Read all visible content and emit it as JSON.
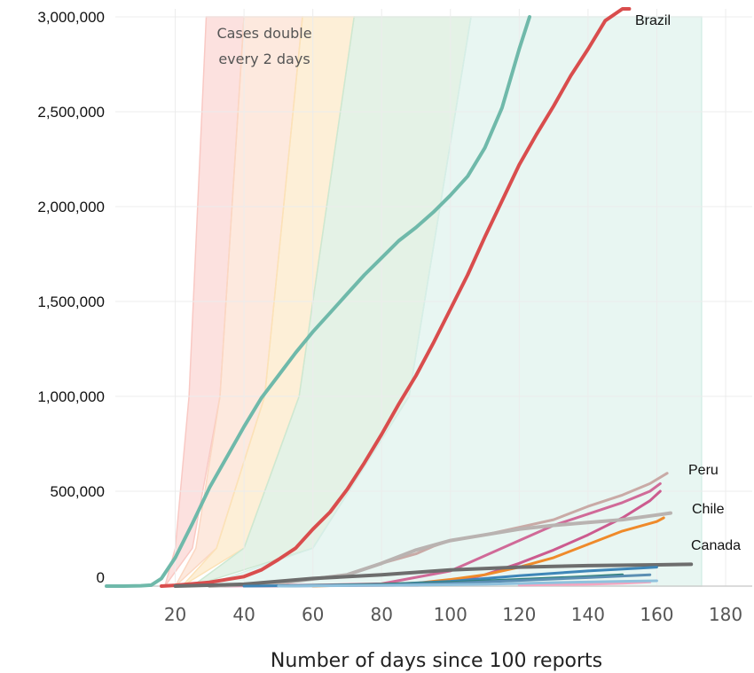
{
  "chart_data": {
    "type": "line",
    "title": "",
    "xlabel": "Number of days since 100 reports",
    "ylabel": "",
    "xlim": [
      0,
      185
    ],
    "ylim": [
      0,
      3000000
    ],
    "x_ticks": [
      20,
      40,
      60,
      80,
      100,
      120,
      140,
      160,
      180
    ],
    "y_ticks": [
      {
        "value": 0,
        "label": "0"
      },
      {
        "value": 500000,
        "label": "500,000"
      },
      {
        "value": 1000000,
        "label": "1,000,000"
      },
      {
        "value": 1500000,
        "label": "1,500,000"
      },
      {
        "value": 2000000,
        "label": "2,000,000"
      },
      {
        "value": 2500000,
        "label": "2,500,000"
      },
      {
        "value": 3000000,
        "label": "3,000,000"
      }
    ],
    "grid": true,
    "annotation": "Cases double every 2 days",
    "doubling_bands": [
      {
        "color": "#f9c9c4",
        "lower": [
          [
            17,
            0
          ],
          [
            20,
            200000
          ],
          [
            24,
            1000000
          ],
          [
            29,
            3000000
          ]
        ],
        "upper": [
          [
            17,
            0
          ],
          [
            25,
            200000
          ],
          [
            33,
            1000000
          ],
          [
            40,
            3000000
          ]
        ]
      },
      {
        "color": "#fbd7c2",
        "lower": [
          [
            20,
            0
          ],
          [
            26,
            200000
          ],
          [
            33,
            1000000
          ],
          [
            40,
            3000000
          ]
        ],
        "upper": [
          [
            20,
            0
          ],
          [
            32,
            200000
          ],
          [
            46,
            1000000
          ],
          [
            57,
            3000000
          ]
        ]
      },
      {
        "color": "#fce2b7",
        "lower": [
          [
            22,
            0
          ],
          [
            32,
            200000
          ],
          [
            46,
            1000000
          ],
          [
            57,
            3000000
          ]
        ],
        "upper": [
          [
            22,
            0
          ],
          [
            40,
            200000
          ],
          [
            56,
            1000000
          ],
          [
            72,
            3000000
          ]
        ]
      },
      {
        "color": "#cde8d2",
        "lower": [
          [
            25,
            0
          ],
          [
            40,
            200000
          ],
          [
            56,
            1000000
          ],
          [
            72,
            3000000
          ]
        ],
        "upper": [
          [
            25,
            0
          ],
          [
            60,
            200000
          ],
          [
            88,
            1000000
          ],
          [
            106,
            3000000
          ]
        ]
      },
      {
        "color": "#d6eee7",
        "lower": [
          [
            28,
            0
          ],
          [
            60,
            200000
          ],
          [
            88,
            1000000
          ],
          [
            106,
            3000000
          ]
        ],
        "upper": [
          [
            28,
            0
          ],
          [
            173,
            0
          ],
          [
            173,
            3000000
          ]
        ]
      }
    ],
    "series": [
      {
        "name": "",
        "color": "#6fb9aa",
        "width": 4,
        "x": [
          0,
          5,
          10,
          13,
          16,
          20,
          25,
          30,
          35,
          40,
          45,
          50,
          55,
          60,
          65,
          70,
          75,
          80,
          85,
          90,
          95,
          100,
          105,
          110,
          115,
          120,
          123
        ],
        "y": [
          0,
          0,
          2000,
          5000,
          40000,
          150000,
          330000,
          520000,
          680000,
          840000,
          990000,
          1110000,
          1230000,
          1340000,
          1440000,
          1540000,
          1640000,
          1730000,
          1820000,
          1890000,
          1970000,
          2060000,
          2160000,
          2310000,
          2520000,
          2830000,
          3000000
        ]
      },
      {
        "name": "Brazil",
        "color": "#d94d4d",
        "width": 4,
        "x": [
          16,
          20,
          30,
          40,
          45,
          50,
          55,
          60,
          65,
          70,
          75,
          80,
          85,
          90,
          95,
          100,
          105,
          110,
          115,
          120,
          125,
          130,
          135,
          140,
          145,
          150,
          152
        ],
        "y": [
          0,
          4000,
          20000,
          50000,
          85000,
          140000,
          200000,
          300000,
          390000,
          510000,
          650000,
          800000,
          960000,
          1110000,
          1280000,
          1460000,
          1640000,
          1840000,
          2030000,
          2220000,
          2380000,
          2530000,
          2690000,
          2830000,
          2980000,
          3150000,
          3200000
        ]
      },
      {
        "name": "Peru",
        "color": "#c9aaa6",
        "width": 3,
        "x": [
          30,
          50,
          70,
          80,
          90,
          95,
          100,
          110,
          120,
          130,
          140,
          150,
          158,
          163
        ],
        "y": [
          0,
          20000,
          60000,
          120000,
          170000,
          210000,
          240000,
          270000,
          310000,
          350000,
          420000,
          480000,
          540000,
          595000
        ]
      },
      {
        "name": "",
        "color": "#d06a98",
        "width": 3,
        "x": [
          30,
          60,
          80,
          100,
          110,
          120,
          130,
          140,
          150,
          158,
          161
        ],
        "y": [
          0,
          5000,
          12000,
          80000,
          160000,
          240000,
          320000,
          380000,
          440000,
          500000,
          540000
        ]
      },
      {
        "name": "",
        "color": "#cc5b8f",
        "width": 3,
        "x": [
          40,
          90,
          100,
          110,
          120,
          130,
          140,
          150,
          158,
          161
        ],
        "y": [
          0,
          5000,
          20000,
          60000,
          120000,
          190000,
          270000,
          360000,
          450000,
          500000
        ]
      },
      {
        "name": "Chile",
        "color": "#b9b3b1",
        "width": 4,
        "x": [
          30,
          50,
          70,
          80,
          90,
          100,
          110,
          120,
          130,
          140,
          150,
          160,
          164
        ],
        "y": [
          0,
          15000,
          60000,
          120000,
          190000,
          240000,
          270000,
          300000,
          320000,
          335000,
          350000,
          375000,
          385000
        ]
      },
      {
        "name": "Canada",
        "color": "#ef8a2a",
        "width": 3,
        "x": [
          60,
          90,
          100,
          110,
          120,
          130,
          140,
          150,
          160,
          162
        ],
        "y": [
          0,
          15000,
          35000,
          60000,
          100000,
          150000,
          220000,
          290000,
          340000,
          360000
        ]
      },
      {
        "name": "",
        "color": "#6d6d6d",
        "width": 4,
        "x": [
          20,
          40,
          60,
          80,
          100,
          120,
          140,
          160,
          170
        ],
        "y": [
          0,
          10000,
          40000,
          60000,
          85000,
          100000,
          108000,
          112000,
          115000
        ]
      },
      {
        "name": "",
        "color": "#3e86b8",
        "width": 3,
        "x": [
          40,
          80,
          100,
          120,
          140,
          155,
          160
        ],
        "y": [
          0,
          8000,
          25000,
          55000,
          80000,
          95000,
          100000
        ]
      },
      {
        "name": "",
        "color": "#2e7f7a",
        "width": 3,
        "x": [
          50,
          80,
          100,
          120,
          140,
          150
        ],
        "y": [
          0,
          10000,
          20000,
          35000,
          50000,
          60000
        ]
      },
      {
        "name": "",
        "color": "#5c8fb3",
        "width": 3,
        "x": [
          50,
          80,
          100,
          120,
          140,
          158
        ],
        "y": [
          0,
          6000,
          15000,
          30000,
          45000,
          60000
        ]
      },
      {
        "name": "",
        "color": "#f4a6c0",
        "width": 3,
        "x": [
          120,
          130,
          140,
          150,
          158
        ],
        "y": [
          5000,
          8000,
          10000,
          15000,
          22000
        ]
      },
      {
        "name": "",
        "color": "#8fc1dd",
        "width": 3,
        "x": [
          50,
          90,
          110,
          130,
          150,
          160
        ],
        "y": [
          0,
          5000,
          10000,
          18000,
          25000,
          28000
        ]
      }
    ]
  }
}
